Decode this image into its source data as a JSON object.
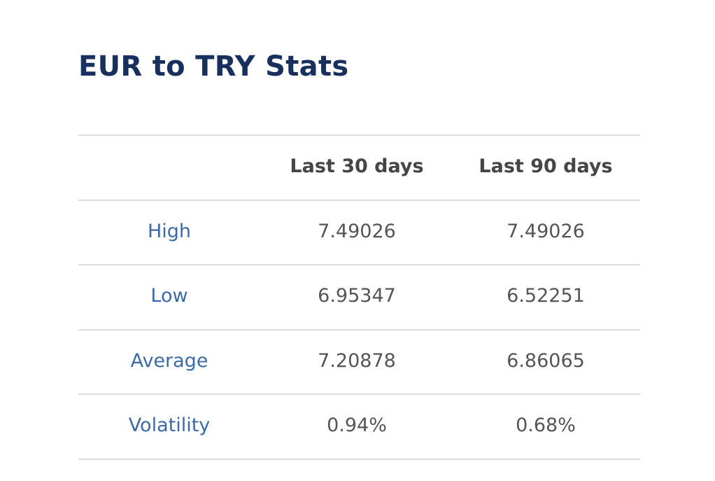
{
  "title": "EUR to TRY Stats",
  "table": {
    "columns": [
      "Last 30 days",
      "Last 90 days"
    ],
    "rows": [
      {
        "label": "High",
        "values": [
          "7.49026",
          "7.49026"
        ]
      },
      {
        "label": "Low",
        "values": [
          "6.95347",
          "6.52251"
        ]
      },
      {
        "label": "Average",
        "values": [
          "7.20878",
          "6.86065"
        ]
      },
      {
        "label": "Volatility",
        "values": [
          "0.94%",
          "0.68%"
        ]
      }
    ]
  }
}
